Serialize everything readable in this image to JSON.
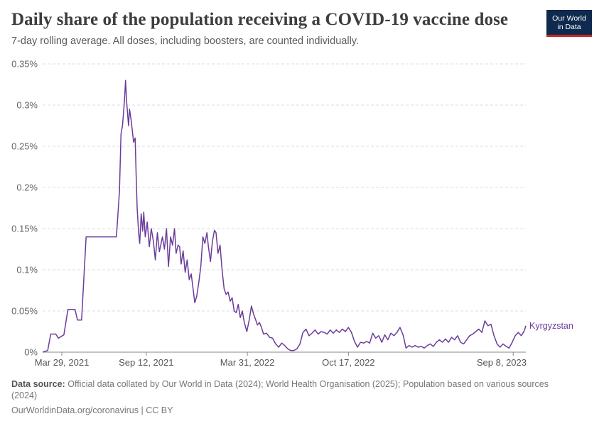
{
  "header": {
    "title": "Daily share of the population receiving a COVID-19 vaccine dose",
    "subtitle": "7-day rolling average. All doses, including boosters, are counted individually.",
    "logo_line1": "Our World",
    "logo_line2": "in Data"
  },
  "footer": {
    "source_label": "Data source:",
    "source_text": "Official data collated by Our World in Data (2024); World Health Organisation (2025); Population based on various sources (2024)",
    "license": "OurWorldinData.org/coronavirus | CC BY"
  },
  "colors": {
    "series": "#6a3d9a",
    "grid": "#dddddd",
    "axis": "#888888",
    "logo_bg": "#0e2a4e",
    "logo_accent": "#ce261e"
  },
  "chart_data": {
    "type": "line",
    "title": "Daily share of the population receiving a COVID-19 vaccine dose",
    "subtitle": "7-day rolling average. All doses, including boosters, are counted individually.",
    "xlabel": "",
    "ylabel": "",
    "x_range": [
      "2021-02-19",
      "2023-10-03"
    ],
    "ylim": [
      0,
      0.35
    ],
    "y_ticks": [
      {
        "value": 0,
        "label": "0%"
      },
      {
        "value": 0.05,
        "label": "0.05%"
      },
      {
        "value": 0.1,
        "label": "0.1%"
      },
      {
        "value": 0.15,
        "label": "0.15%"
      },
      {
        "value": 0.2,
        "label": "0.2%"
      },
      {
        "value": 0.25,
        "label": "0.25%"
      },
      {
        "value": 0.3,
        "label": "0.3%"
      },
      {
        "value": 0.35,
        "label": "0.35%"
      }
    ],
    "x_ticks": [
      {
        "date": "2021-03-29",
        "label": "Mar 29, 2021"
      },
      {
        "date": "2021-09-12",
        "label": "Sep 12, 2021"
      },
      {
        "date": "2022-03-31",
        "label": "Mar 31, 2022"
      },
      {
        "date": "2022-10-17",
        "label": "Oct 17, 2022"
      },
      {
        "date": "2023-09-08",
        "label": "Sep 8, 2023"
      }
    ],
    "grid": true,
    "grid_style": "dashed-horizontal",
    "legend": "inline-right",
    "series": [
      {
        "name": "Kyrgyzstan",
        "color": "#6a3d9a",
        "points": [
          [
            "2021-02-19",
            0
          ],
          [
            "2021-03-01",
            0.002
          ],
          [
            "2021-03-07",
            0.022
          ],
          [
            "2021-03-17",
            0.022
          ],
          [
            "2021-03-22",
            0.017
          ],
          [
            "2021-04-02",
            0.021
          ],
          [
            "2021-04-10",
            0.052
          ],
          [
            "2021-04-24",
            0.052
          ],
          [
            "2021-04-29",
            0.039
          ],
          [
            "2021-05-07",
            0.039
          ],
          [
            "2021-05-16",
            0.14
          ],
          [
            "2021-06-10",
            0.14
          ],
          [
            "2021-07-15",
            0.14
          ],
          [
            "2021-07-21",
            0.195
          ],
          [
            "2021-07-24",
            0.265
          ],
          [
            "2021-07-27",
            0.275
          ],
          [
            "2021-07-31",
            0.306
          ],
          [
            "2021-08-02",
            0.33
          ],
          [
            "2021-08-04",
            0.305
          ],
          [
            "2021-08-08",
            0.275
          ],
          [
            "2021-08-10",
            0.295
          ],
          [
            "2021-08-13",
            0.282
          ],
          [
            "2021-08-18",
            0.255
          ],
          [
            "2021-08-21",
            0.26
          ],
          [
            "2021-08-23",
            0.215
          ],
          [
            "2021-08-25",
            0.175
          ],
          [
            "2021-08-28",
            0.145
          ],
          [
            "2021-08-30",
            0.132
          ],
          [
            "2021-09-02",
            0.168
          ],
          [
            "2021-09-05",
            0.147
          ],
          [
            "2021-09-07",
            0.17
          ],
          [
            "2021-09-10",
            0.14
          ],
          [
            "2021-09-14",
            0.158
          ],
          [
            "2021-09-18",
            0.128
          ],
          [
            "2021-09-22",
            0.15
          ],
          [
            "2021-09-26",
            0.135
          ],
          [
            "2021-09-30",
            0.112
          ],
          [
            "2021-10-04",
            0.145
          ],
          [
            "2021-10-08",
            0.122
          ],
          [
            "2021-10-14",
            0.14
          ],
          [
            "2021-10-18",
            0.125
          ],
          [
            "2021-10-22",
            0.15
          ],
          [
            "2021-10-26",
            0.104
          ],
          [
            "2021-10-30",
            0.14
          ],
          [
            "2021-11-03",
            0.13
          ],
          [
            "2021-11-07",
            0.15
          ],
          [
            "2021-11-10",
            0.12
          ],
          [
            "2021-11-14",
            0.13
          ],
          [
            "2021-11-17",
            0.128
          ],
          [
            "2021-11-20",
            0.107
          ],
          [
            "2021-11-24",
            0.123
          ],
          [
            "2021-11-28",
            0.097
          ],
          [
            "2021-12-02",
            0.112
          ],
          [
            "2021-12-06",
            0.088
          ],
          [
            "2021-12-10",
            0.095
          ],
          [
            "2021-12-14",
            0.075
          ],
          [
            "2021-12-17",
            0.06
          ],
          [
            "2021-12-21",
            0.068
          ],
          [
            "2021-12-25",
            0.085
          ],
          [
            "2021-12-29",
            0.104
          ],
          [
            "2022-01-02",
            0.14
          ],
          [
            "2022-01-06",
            0.132
          ],
          [
            "2022-01-10",
            0.145
          ],
          [
            "2022-01-13",
            0.128
          ],
          [
            "2022-01-17",
            0.11
          ],
          [
            "2022-01-21",
            0.135
          ],
          [
            "2022-01-25",
            0.148
          ],
          [
            "2022-01-28",
            0.145
          ],
          [
            "2022-02-01",
            0.12
          ],
          [
            "2022-02-05",
            0.13
          ],
          [
            "2022-02-09",
            0.1
          ],
          [
            "2022-02-13",
            0.077
          ],
          [
            "2022-02-17",
            0.07
          ],
          [
            "2022-02-21",
            0.073
          ],
          [
            "2022-02-25",
            0.062
          ],
          [
            "2022-03-01",
            0.066
          ],
          [
            "2022-03-05",
            0.05
          ],
          [
            "2022-03-09",
            0.048
          ],
          [
            "2022-03-13",
            0.058
          ],
          [
            "2022-03-17",
            0.042
          ],
          [
            "2022-03-21",
            0.05
          ],
          [
            "2022-03-25",
            0.036
          ],
          [
            "2022-03-30",
            0.025
          ],
          [
            "2022-04-04",
            0.04
          ],
          [
            "2022-04-08",
            0.056
          ],
          [
            "2022-04-12",
            0.047
          ],
          [
            "2022-04-16",
            0.04
          ],
          [
            "2022-04-20",
            0.033
          ],
          [
            "2022-04-24",
            0.036
          ],
          [
            "2022-04-28",
            0.03
          ],
          [
            "2022-05-02",
            0.022
          ],
          [
            "2022-05-08",
            0.023
          ],
          [
            "2022-05-14",
            0.018
          ],
          [
            "2022-05-20",
            0.017
          ],
          [
            "2022-05-26",
            0.01
          ],
          [
            "2022-06-01",
            0.006
          ],
          [
            "2022-06-07",
            0.011
          ],
          [
            "2022-06-13",
            0.008
          ],
          [
            "2022-06-19",
            0.004
          ],
          [
            "2022-06-25",
            0.002
          ],
          [
            "2022-07-01",
            0.002
          ],
          [
            "2022-07-07",
            0.004
          ],
          [
            "2022-07-13",
            0.01
          ],
          [
            "2022-07-19",
            0.024
          ],
          [
            "2022-07-25",
            0.028
          ],
          [
            "2022-07-31",
            0.02
          ],
          [
            "2022-08-06",
            0.023
          ],
          [
            "2022-08-12",
            0.027
          ],
          [
            "2022-08-18",
            0.022
          ],
          [
            "2022-08-24",
            0.025
          ],
          [
            "2022-08-30",
            0.024
          ],
          [
            "2022-09-05",
            0.022
          ],
          [
            "2022-09-11",
            0.027
          ],
          [
            "2022-09-17",
            0.023
          ],
          [
            "2022-09-23",
            0.027
          ],
          [
            "2022-09-29",
            0.024
          ],
          [
            "2022-10-05",
            0.028
          ],
          [
            "2022-10-11",
            0.025
          ],
          [
            "2022-10-17",
            0.03
          ],
          [
            "2022-10-23",
            0.024
          ],
          [
            "2022-10-29",
            0.013
          ],
          [
            "2022-11-04",
            0.006
          ],
          [
            "2022-11-10",
            0.012
          ],
          [
            "2022-11-16",
            0.011
          ],
          [
            "2022-11-22",
            0.013
          ],
          [
            "2022-11-28",
            0.011
          ],
          [
            "2022-12-04",
            0.023
          ],
          [
            "2022-12-10",
            0.017
          ],
          [
            "2022-12-16",
            0.02
          ],
          [
            "2022-12-22",
            0.012
          ],
          [
            "2022-12-28",
            0.021
          ],
          [
            "2023-01-03",
            0.015
          ],
          [
            "2023-01-09",
            0.023
          ],
          [
            "2023-01-15",
            0.02
          ],
          [
            "2023-01-21",
            0.024
          ],
          [
            "2023-01-27",
            0.03
          ],
          [
            "2023-02-02",
            0.021
          ],
          [
            "2023-02-08",
            0.005
          ],
          [
            "2023-02-14",
            0.008
          ],
          [
            "2023-02-20",
            0.006
          ],
          [
            "2023-02-26",
            0.008
          ],
          [
            "2023-03-04",
            0.006
          ],
          [
            "2023-03-10",
            0.007
          ],
          [
            "2023-03-16",
            0.005
          ],
          [
            "2023-03-22",
            0.008
          ],
          [
            "2023-03-28",
            0.01
          ],
          [
            "2023-04-03",
            0.007
          ],
          [
            "2023-04-09",
            0.012
          ],
          [
            "2023-04-15",
            0.015
          ],
          [
            "2023-04-21",
            0.012
          ],
          [
            "2023-04-27",
            0.016
          ],
          [
            "2023-05-03",
            0.012
          ],
          [
            "2023-05-09",
            0.018
          ],
          [
            "2023-05-15",
            0.015
          ],
          [
            "2023-05-21",
            0.02
          ],
          [
            "2023-05-27",
            0.012
          ],
          [
            "2023-06-02",
            0.01
          ],
          [
            "2023-06-08",
            0.015
          ],
          [
            "2023-06-14",
            0.02
          ],
          [
            "2023-06-20",
            0.022
          ],
          [
            "2023-06-26",
            0.025
          ],
          [
            "2023-07-02",
            0.028
          ],
          [
            "2023-07-08",
            0.024
          ],
          [
            "2023-07-14",
            0.038
          ],
          [
            "2023-07-20",
            0.032
          ],
          [
            "2023-07-26",
            0.034
          ],
          [
            "2023-08-01",
            0.02
          ],
          [
            "2023-08-07",
            0.01
          ],
          [
            "2023-08-13",
            0.006
          ],
          [
            "2023-08-19",
            0.01
          ],
          [
            "2023-08-25",
            0.007
          ],
          [
            "2023-08-31",
            0.005
          ],
          [
            "2023-09-06",
            0.012
          ],
          [
            "2023-09-12",
            0.02
          ],
          [
            "2023-09-18",
            0.024
          ],
          [
            "2023-09-24",
            0.02
          ],
          [
            "2023-09-30",
            0.026
          ],
          [
            "2023-10-03",
            0.032
          ]
        ]
      }
    ]
  }
}
